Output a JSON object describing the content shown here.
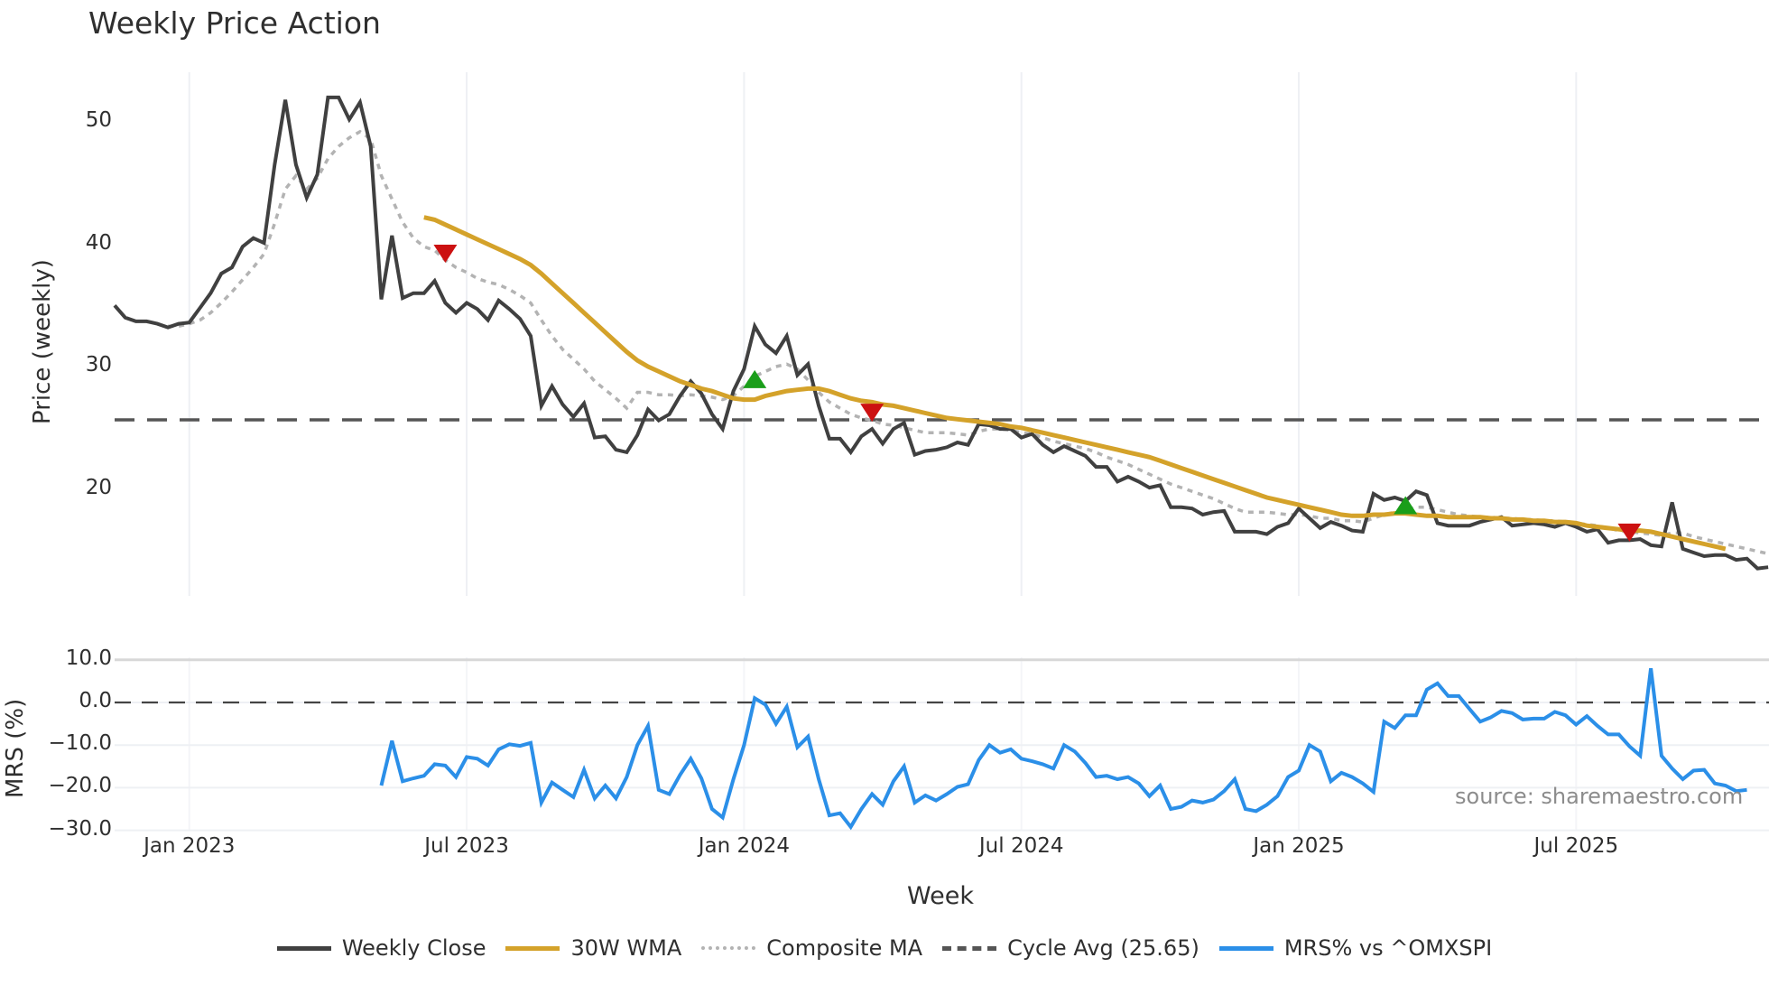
{
  "title": "Weekly Price Action",
  "source_note": "source: sharemaestro.com",
  "price_panel": {
    "ylabel": "Price (weekly)",
    "yticks": [
      {
        "value": 50,
        "label": "50"
      },
      {
        "value": 40,
        "label": "40"
      },
      {
        "value": 30,
        "label": "30"
      },
      {
        "value": 20,
        "label": "20"
      }
    ]
  },
  "mrs_panel": {
    "ylabel": "MRS (%)",
    "yticks": [
      {
        "value": 10,
        "label": "10.0"
      },
      {
        "value": 0,
        "label": "0.0"
      },
      {
        "value": -10,
        "label": "−10.0"
      },
      {
        "value": -20,
        "label": "−20.0"
      },
      {
        "value": -30,
        "label": "−30.0"
      }
    ]
  },
  "xaxis": {
    "label": "Week",
    "ticks": [
      {
        "label": "Jan 2023",
        "week": 7
      },
      {
        "label": "Jul 2023",
        "week": 33
      },
      {
        "label": "Jan 2024",
        "week": 59
      },
      {
        "label": "Jul 2024",
        "week": 85
      },
      {
        "label": "Jan 2025",
        "week": 111
      },
      {
        "label": "Jul 2025",
        "week": 137
      }
    ]
  },
  "legend": [
    {
      "label": "Weekly Close",
      "color": "#404040",
      "style": "solid"
    },
    {
      "label": "30W WMA",
      "color": "#d4a22a",
      "style": "solid"
    },
    {
      "label": "Composite MA",
      "color": "#b3b3b3",
      "style": "dotted"
    },
    {
      "label": "Cycle Avg (25.65)",
      "color": "#555555",
      "style": "dashed"
    },
    {
      "label": "MRS% vs ^OMXSPI",
      "color": "#2b8fe8",
      "style": "solid"
    }
  ],
  "colors": {
    "close": "#404040",
    "wma": "#d4a22a",
    "composite": "#b3b3b3",
    "cycle": "#555555",
    "mrs": "#2b8fe8",
    "buy": "#1a9e1a",
    "sell": "#cc1111",
    "grid": "#eef0f4"
  },
  "chart_data": {
    "type": "line",
    "title": "Weekly Price Action",
    "xlabel": "Week",
    "ylabel": "Price (weekly)",
    "ylabel_lower": "MRS (%)",
    "ylim": [
      11.5,
      54
    ],
    "ylim_lower": [
      -31,
      12
    ],
    "x_tick_labels": [
      "Jan 2023",
      "Jul 2023",
      "Jan 2024",
      "Jul 2024",
      "Jan 2025",
      "Jul 2025"
    ],
    "legend_position": "bottom",
    "grid": true,
    "cycle_avg": 25.65,
    "series": [
      {
        "name": "Weekly Close",
        "values": [
          35.0,
          34.0,
          33.7,
          33.7,
          33.5,
          33.2,
          33.5,
          33.6,
          34.8,
          36.0,
          37.6,
          38.1,
          39.8,
          40.5,
          40.1,
          46.5,
          51.8,
          46.5,
          43.8,
          45.7,
          52.0,
          52.0,
          50.2,
          51.6,
          48.0,
          35.5,
          40.7,
          35.6,
          36.0,
          36.0,
          37.0,
          35.2,
          34.4,
          35.2,
          34.7,
          33.8,
          35.4,
          34.7,
          33.9,
          32.5,
          26.8,
          28.4,
          26.9,
          25.9,
          27.0,
          24.2,
          24.3,
          23.2,
          23.0,
          24.4,
          26.5,
          25.6,
          26.1,
          27.6,
          28.8,
          27.8,
          26.1,
          24.9,
          28.0,
          29.8,
          33.3,
          31.8,
          31.1,
          32.5,
          29.3,
          30.2,
          26.8,
          24.1,
          24.1,
          23.0,
          24.3,
          24.9,
          23.7,
          24.9,
          25.4,
          22.8,
          23.1,
          23.2,
          23.4,
          23.8,
          23.6,
          25.3,
          25.2,
          24.9,
          24.9,
          24.2,
          24.5,
          23.6,
          23.0,
          23.5,
          23.1,
          22.7,
          21.8,
          21.8,
          20.6,
          21.0,
          20.6,
          20.1,
          20.3,
          18.5,
          18.5,
          18.4,
          17.9,
          18.1,
          18.2,
          16.5,
          16.5,
          16.5,
          16.3,
          16.9,
          17.2,
          18.4,
          17.6,
          16.8,
          17.3,
          17.0,
          16.6,
          16.5,
          19.6,
          19.1,
          19.3,
          19.0,
          19.8,
          19.5,
          17.2,
          17.0,
          17.0,
          17.0,
          17.3,
          17.5,
          17.7,
          17.0,
          17.1,
          17.2,
          17.1,
          16.9,
          17.2,
          16.9,
          16.5,
          16.7,
          15.6,
          15.8,
          15.8,
          15.9,
          15.4,
          15.3,
          18.9,
          15.1,
          14.8,
          14.5,
          14.6,
          14.6,
          14.2,
          14.3,
          13.5,
          13.6
        ]
      },
      {
        "name": "30W WMA",
        "start_index": 29,
        "values": [
          42.2,
          42.0,
          41.6,
          41.2,
          40.8,
          40.4,
          40.0,
          39.6,
          39.2,
          38.8,
          38.3,
          37.6,
          36.8,
          36.0,
          35.2,
          34.4,
          33.6,
          32.8,
          32.0,
          31.2,
          30.5,
          30.0,
          29.6,
          29.2,
          28.8,
          28.5,
          28.2,
          28.0,
          27.7,
          27.4,
          27.3,
          27.3,
          27.6,
          27.8,
          28.0,
          28.1,
          28.2,
          28.2,
          28.0,
          27.7,
          27.4,
          27.2,
          27.1,
          26.9,
          26.8,
          26.6,
          26.4,
          26.2,
          26.0,
          25.8,
          25.7,
          25.6,
          25.5,
          25.4,
          25.3,
          25.1,
          25.0,
          24.8,
          24.6,
          24.4,
          24.2,
          24.0,
          23.8,
          23.6,
          23.4,
          23.2,
          23.0,
          22.8,
          22.6,
          22.3,
          22.0,
          21.7,
          21.4,
          21.1,
          20.8,
          20.5,
          20.2,
          19.9,
          19.6,
          19.3,
          19.1,
          18.9,
          18.7,
          18.5,
          18.3,
          18.1,
          17.9,
          17.8,
          17.8,
          17.9,
          17.9,
          18.0,
          18.0,
          17.9,
          17.8,
          17.8,
          17.7,
          17.7,
          17.7,
          17.7,
          17.6,
          17.6,
          17.5,
          17.5,
          17.4,
          17.4,
          17.3,
          17.3,
          17.2,
          17.0,
          16.9,
          16.8,
          16.7,
          16.6,
          16.6,
          16.5,
          16.3,
          16.1,
          15.9,
          15.7,
          15.5,
          15.3,
          15.1
        ]
      },
      {
        "name": "Composite MA",
        "values": [
          null,
          null,
          null,
          null,
          null,
          33.3,
          33.3,
          33.5,
          33.8,
          34.4,
          35.2,
          36.1,
          37.1,
          38.1,
          39.2,
          41.7,
          44.5,
          45.6,
          44.5,
          45.4,
          47.0,
          48.0,
          48.7,
          49.2,
          48.6,
          45.6,
          43.7,
          41.8,
          40.5,
          39.8,
          39.5,
          38.7,
          38.1,
          37.7,
          37.2,
          36.9,
          36.7,
          36.3,
          35.8,
          35.2,
          33.8,
          32.5,
          31.4,
          30.6,
          29.8,
          28.8,
          28.1,
          27.4,
          26.6,
          27.9,
          27.9,
          27.7,
          27.7,
          27.6,
          27.7,
          27.6,
          27.5,
          27.3,
          27.6,
          28.4,
          29.2,
          29.6,
          30.0,
          30.2,
          29.8,
          28.9,
          27.9,
          27.1,
          26.6,
          26.1,
          25.8,
          25.6,
          25.3,
          25.2,
          25.0,
          24.8,
          24.6,
          24.6,
          24.6,
          24.5,
          24.4,
          24.7,
          24.9,
          24.9,
          24.8,
          24.6,
          24.5,
          24.2,
          23.9,
          23.7,
          23.5,
          23.3,
          23.0,
          22.6,
          22.3,
          22.0,
          21.6,
          21.2,
          20.8,
          20.4,
          20.1,
          19.8,
          19.5,
          19.2,
          18.8,
          18.4,
          18.1,
          18.1,
          18.1,
          18.0,
          17.9,
          17.9,
          17.8,
          17.6,
          17.6,
          17.4,
          17.4,
          17.3,
          17.6,
          17.9,
          18.1,
          18.3,
          18.5,
          18.5,
          18.3,
          18.1,
          17.9,
          17.8,
          17.7,
          17.7,
          17.6,
          17.6,
          17.5,
          17.5,
          17.4,
          17.4,
          17.3,
          17.2,
          17.1,
          17.0,
          16.8,
          16.6,
          16.5,
          16.4,
          16.3,
          16.2,
          16.4,
          16.4,
          16.1,
          15.9,
          15.7,
          15.5,
          15.3,
          15.1,
          14.9,
          14.7
        ]
      },
      {
        "name": "MRS% vs ^OMXSPI",
        "start_index": 25,
        "values": [
          -19.5,
          -9.0,
          -18.5,
          -17.8,
          -17.2,
          -14.5,
          -14.8,
          -17.5,
          -12.8,
          -13.2,
          -14.8,
          -11.0,
          -9.8,
          -10.2,
          -9.5,
          -23.5,
          -18.8,
          -20.5,
          -22.2,
          -15.8,
          -22.5,
          -19.5,
          -22.5,
          -17.5,
          -10.0,
          -5.5,
          -20.5,
          -21.5,
          -17.0,
          -13.2,
          -17.8,
          -25.0,
          -27.0,
          -18.0,
          -10.0,
          1.0,
          -0.5,
          -5.0,
          -1.0,
          -10.5,
          -8.0,
          -18.0,
          -26.5,
          -26.0,
          -29.2,
          -25.0,
          -21.5,
          -24.0,
          -18.5,
          -15.0,
          -23.5,
          -21.8,
          -23.0,
          -21.5,
          -19.8,
          -19.2,
          -13.5,
          -10.0,
          -11.8,
          -11.0,
          -13.2,
          -13.8,
          -14.5,
          -15.5,
          -10.0,
          -11.5,
          -14.2,
          -17.5,
          -17.2,
          -18.0,
          -17.5,
          -19.0,
          -22.0,
          -19.5,
          -25.0,
          -24.5,
          -23.0,
          -23.5,
          -22.8,
          -20.8,
          -18.0,
          -25.0,
          -25.5,
          -24.0,
          -22.0,
          -17.5,
          -16.0,
          -10.0,
          -11.5,
          -18.5,
          -16.5,
          -17.5,
          -19.0,
          -21.0,
          -4.5,
          -6.0,
          -3.0,
          -3.0,
          3.0,
          4.5,
          1.5,
          1.5,
          -1.5,
          -4.5,
          -3.5,
          -2.0,
          -2.5,
          -4.0,
          -3.8,
          -3.8,
          -2.2,
          -3.0,
          -5.2,
          -3.2,
          -5.5,
          -7.5,
          -7.5,
          -10.3,
          -12.5,
          8.0,
          -12.5,
          -15.5,
          -18.0,
          -16.0,
          -15.8,
          -19.0,
          -19.5,
          -20.8,
          -20.5
        ]
      }
    ],
    "signals": [
      {
        "type": "sell",
        "index": 31,
        "value": 39.3
      },
      {
        "type": "buy",
        "index": 60,
        "value": 28.9
      },
      {
        "type": "sell",
        "index": 71,
        "value": 26.3
      },
      {
        "type": "buy",
        "index": 121,
        "value": 18.6
      },
      {
        "type": "sell",
        "index": 142,
        "value": 16.5
      }
    ]
  }
}
